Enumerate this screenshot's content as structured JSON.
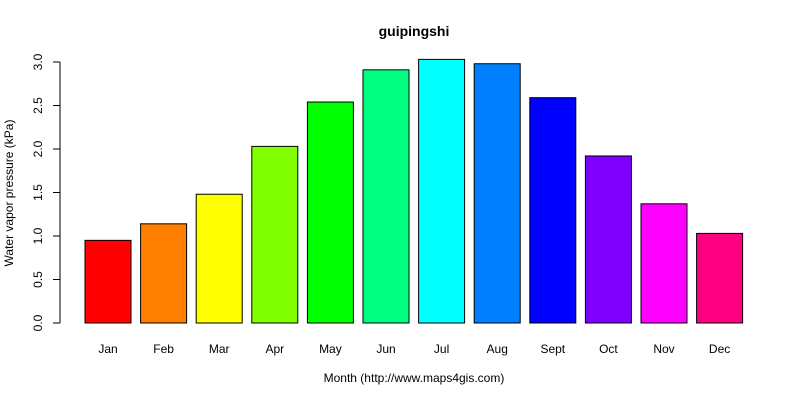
{
  "chart_data": {
    "type": "bar",
    "title": "guipingshi",
    "x_label": "Month (http://www.maps4gis.com)",
    "y_label": "Water vapor pressure (kPa)",
    "categories": [
      "Jan",
      "Feb",
      "Mar",
      "Apr",
      "May",
      "Jun",
      "Jul",
      "Aug",
      "Sept",
      "Oct",
      "Nov",
      "Dec"
    ],
    "values": [
      0.95,
      1.14,
      1.48,
      2.03,
      2.54,
      2.91,
      3.03,
      2.98,
      2.59,
      1.92,
      1.37,
      1.03
    ],
    "colors": [
      "#ff0000",
      "#ff8000",
      "#ffff00",
      "#80ff00",
      "#00ff00",
      "#00ff80",
      "#00ffff",
      "#0080ff",
      "#0000ff",
      "#8000ff",
      "#ff00ff",
      "#ff0080"
    ],
    "ylim": [
      0,
      3.0
    ],
    "yticks": [
      {
        "value": 0,
        "label": "0.0"
      },
      0.5,
      {
        "value": 1,
        "label": "1.0"
      },
      1.5,
      {
        "value": 2,
        "label": "2.0"
      },
      2.5,
      {
        "value": 3,
        "label": "3.0"
      }
    ]
  }
}
